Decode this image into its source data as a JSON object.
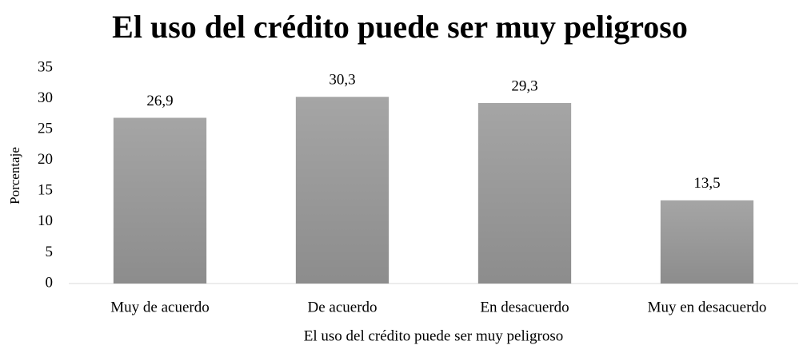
{
  "chart_data": {
    "type": "bar",
    "title": "El uso del crédito puede ser muy peligroso",
    "x_label": "El uso del crédito puede ser muy peligroso",
    "y_label": "Porcentaje",
    "categories": [
      "Muy de acuerdo",
      "De acuerdo",
      "En desacuerdo",
      "Muy en desacuerdo"
    ],
    "values": [
      26.9,
      30.3,
      29.3,
      13.5
    ],
    "value_labels": [
      "26,9",
      "30,3",
      "29,3",
      "13,5"
    ],
    "color": "#a5a5a5",
    "ylim": [
      0,
      35
    ],
    "yticks": [
      0,
      5,
      10,
      15,
      20,
      25,
      30,
      35
    ],
    "grid": false
  }
}
